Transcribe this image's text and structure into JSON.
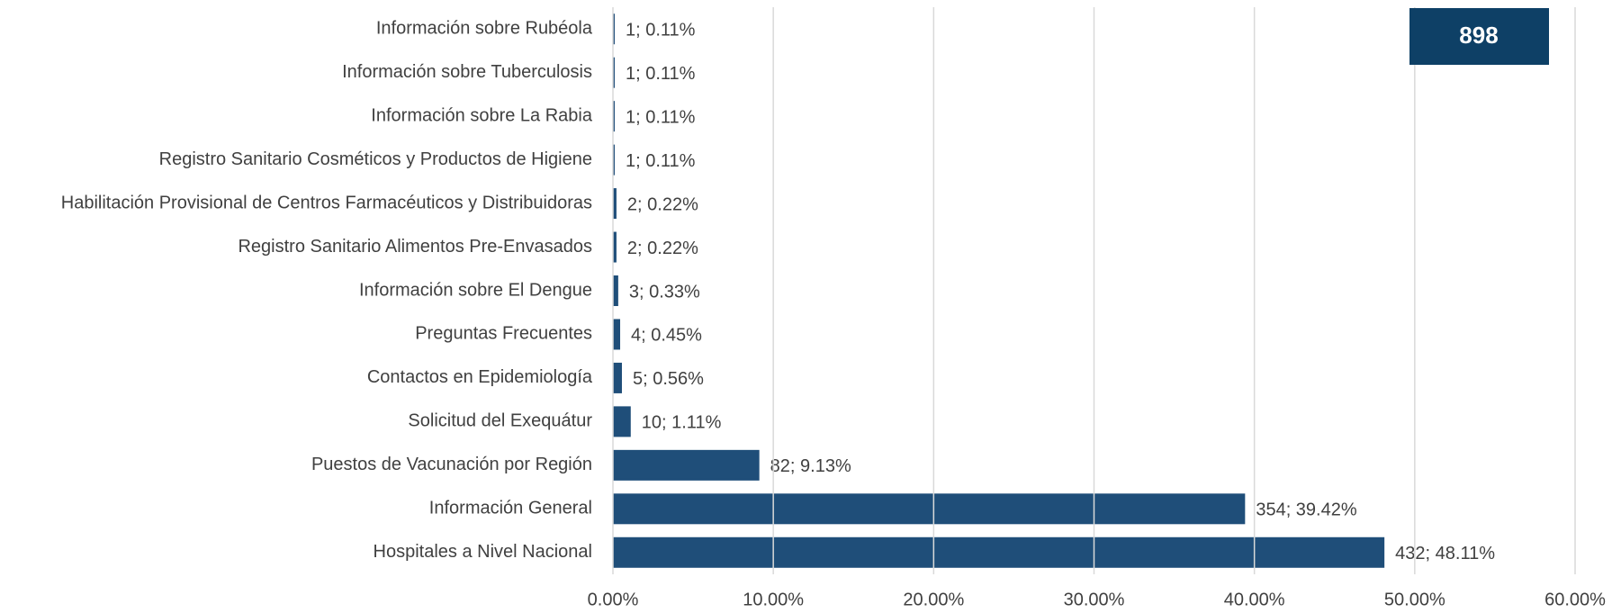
{
  "chart_data": {
    "type": "barh",
    "annotation": "898",
    "categories": [
      "Información sobre Rubéola",
      "Información sobre Tuberculosis",
      "Información sobre La Rabia",
      "Registro Sanitario Cosméticos y Productos de Higiene",
      "Habilitación Provisional de Centros Farmacéuticos y Distribuidoras",
      "Registro Sanitario Alimentos Pre-Envasados",
      "Información sobre El Dengue",
      "Preguntas Frecuentes",
      "Contactos en Epidemiología",
      "Solicitud del Exequátur",
      "Puestos de Vacunación por Región",
      "Información General",
      "Hospitales a Nivel Nacional"
    ],
    "values": [
      0.11,
      0.11,
      0.11,
      0.11,
      0.22,
      0.22,
      0.33,
      0.45,
      0.56,
      1.11,
      9.13,
      39.42,
      48.11
    ],
    "value_labels": [
      "1; 0.11%",
      "1; 0.11%",
      "1; 0.11%",
      "1; 0.11%",
      "2; 0.22%",
      "2; 0.22%",
      "3; 0.33%",
      "4; 0.45%",
      "5; 0.56%",
      "10; 1.11%",
      "82; 9.13%",
      "354; 39.42%",
      "432; 48.11%"
    ],
    "color": "#1f4e79",
    "xlim": [
      0,
      60
    ],
    "xticks": [
      {
        "value": 0,
        "label": "0.00%"
      },
      {
        "value": 10,
        "label": "10.00%"
      },
      {
        "value": 20,
        "label": "20.00%"
      },
      {
        "value": 30,
        "label": "30.00%"
      },
      {
        "value": 40,
        "label": "40.00%"
      },
      {
        "value": 50,
        "label": "50.00%"
      },
      {
        "value": 60,
        "label": "60.00%"
      }
    ],
    "grid": true
  }
}
